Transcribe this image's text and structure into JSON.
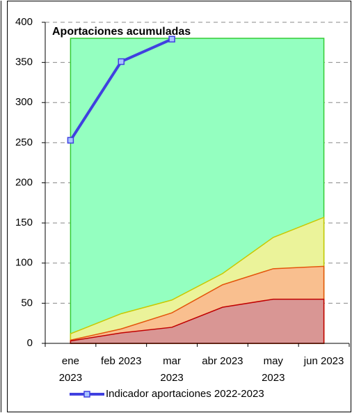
{
  "chart_data": {
    "type": "area",
    "title": "Aportaciones acumuladas",
    "categories": [
      "ene 2023",
      "feb 2023",
      "mar 2023",
      "abr 2023",
      "may 2023",
      "jun 2023"
    ],
    "series": [
      {
        "color": "#94ffc0",
        "stroke": "#33cc33",
        "values": [
          380,
          380,
          380,
          380,
          380,
          380
        ]
      },
      {
        "color": "#ebf39a",
        "stroke": "#c8c800",
        "values": [
          12,
          37,
          54,
          87,
          132,
          157
        ]
      },
      {
        "color": "#f9bf8f",
        "stroke": "#e4540a",
        "values": [
          4,
          18,
          38,
          73,
          93,
          96
        ]
      },
      {
        "color": "#d99694",
        "stroke": "#c00000",
        "values": [
          3,
          13,
          20,
          45,
          55,
          55
        ]
      },
      {
        "type": "line",
        "name": "Indicador aportaciones 2022-2023",
        "color": "#4040e0",
        "values": [
          253,
          351,
          379,
          null,
          null,
          null
        ]
      }
    ],
    "ylim": [
      0,
      400
    ],
    "yticks": [
      0,
      50,
      100,
      150,
      200,
      250,
      300,
      350,
      400
    ],
    "grid": true
  }
}
